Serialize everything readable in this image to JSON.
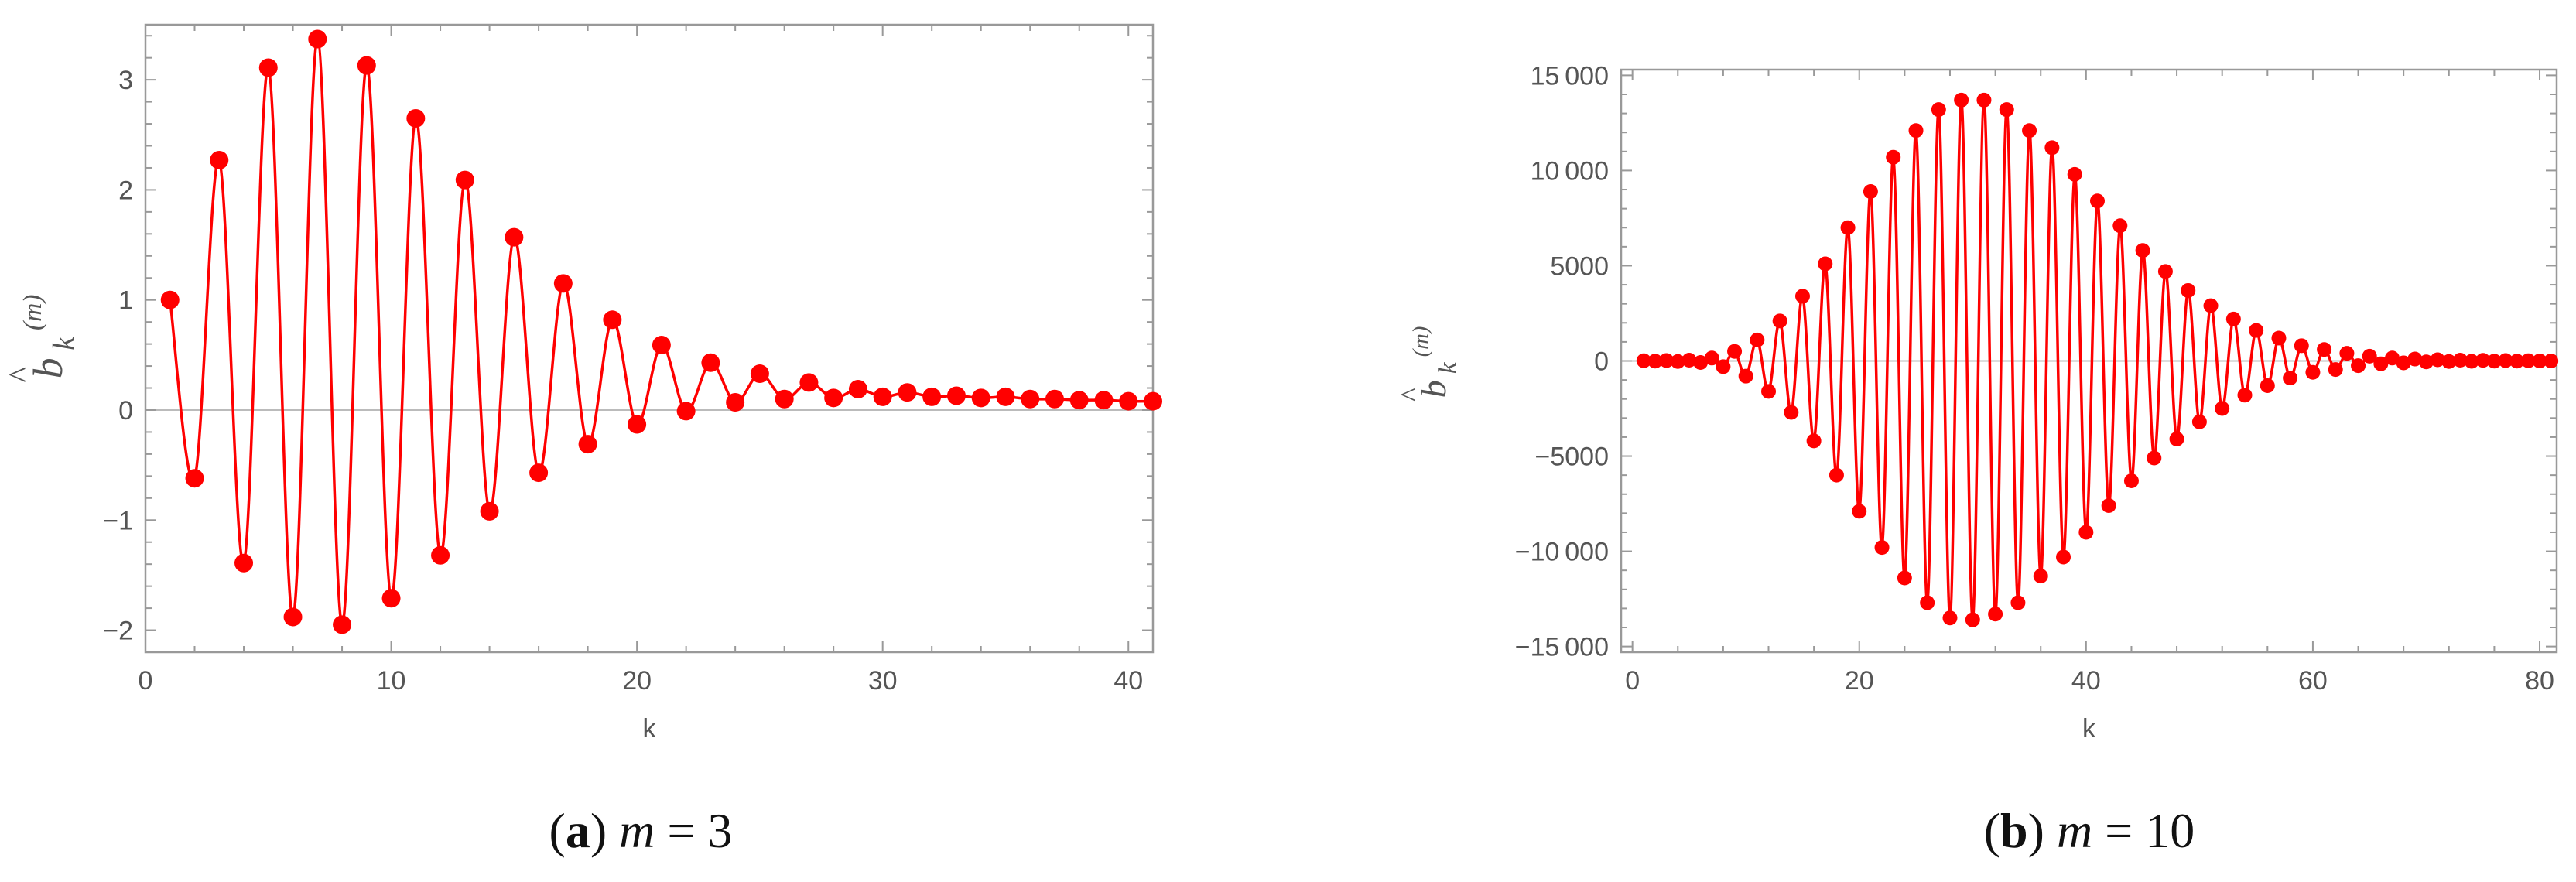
{
  "chart_data": [
    {
      "type": "line",
      "marker": "circle",
      "color": "#ff0000",
      "series_name": "",
      "xlabel": "k",
      "ylabel": {
        "symbol": "b",
        "accent": "^",
        "subscript": "k",
        "superscript": "(m)"
      },
      "xlim": [
        0,
        41
      ],
      "ylim": [
        -2.2,
        3.5
      ],
      "xticks": [
        0,
        10,
        20,
        30,
        40
      ],
      "yticks": [
        -2,
        -1,
        0,
        1,
        2,
        3
      ],
      "ytick_labels": [
        "−2",
        "−1",
        "0",
        "1",
        "2",
        "3"
      ],
      "grid": false,
      "x": [
        1,
        2,
        3,
        4,
        5,
        6,
        7,
        8,
        9,
        10,
        11,
        12,
        13,
        14,
        15,
        16,
        17,
        18,
        19,
        20,
        21,
        22,
        23,
        24,
        25,
        26,
        27,
        28,
        29,
        30,
        31,
        32,
        33,
        34,
        35,
        36,
        37,
        38,
        39,
        40,
        41
      ],
      "y": [
        1.0,
        -0.62,
        2.27,
        -1.39,
        3.11,
        -1.88,
        3.37,
        -1.95,
        3.13,
        -1.71,
        2.65,
        -1.32,
        2.09,
        -0.92,
        1.57,
        -0.57,
        1.15,
        -0.31,
        0.82,
        -0.13,
        0.59,
        -0.01,
        0.43,
        0.07,
        0.33,
        0.1,
        0.25,
        0.11,
        0.19,
        0.12,
        0.16,
        0.12,
        0.13,
        0.11,
        0.12,
        0.1,
        0.1,
        0.09,
        0.09,
        0.08,
        0.08
      ],
      "caption": {
        "letter": "a",
        "variable": "m",
        "equals": "=",
        "value": "3"
      }
    },
    {
      "type": "line",
      "marker": "circle",
      "color": "#ff0000",
      "series_name": "",
      "xlabel": "k",
      "ylabel": {
        "symbol": "b",
        "accent": "^",
        "subscript": "k",
        "superscript": "(m)"
      },
      "xlim": [
        -1,
        81.5
      ],
      "ylim": [
        -15300,
        15300
      ],
      "xticks": [
        0,
        20,
        40,
        60,
        80
      ],
      "yticks": [
        -15000,
        -10000,
        -5000,
        0,
        5000,
        10000,
        15000
      ],
      "ytick_labels": [
        "−15 000",
        "−10 000",
        "−5000",
        "0",
        "5000",
        "10 000",
        "15 000"
      ],
      "grid": false,
      "x": [
        1,
        2,
        3,
        4,
        5,
        6,
        7,
        8,
        9,
        10,
        11,
        12,
        13,
        14,
        15,
        16,
        17,
        18,
        19,
        20,
        21,
        22,
        23,
        24,
        25,
        26,
        27,
        28,
        29,
        30,
        31,
        32,
        33,
        34,
        35,
        36,
        37,
        38,
        39,
        40,
        41,
        42,
        43,
        44,
        45,
        46,
        47,
        48,
        49,
        50,
        51,
        52,
        53,
        54,
        55,
        56,
        57,
        58,
        59,
        60,
        61,
        62,
        63,
        64,
        65,
        66,
        67,
        68,
        69,
        70,
        71,
        72,
        73,
        74,
        75,
        76,
        77,
        78,
        79,
        80,
        81
      ],
      "y": [
        10,
        -10,
        20,
        -30,
        40,
        -80,
        150,
        -300,
        500,
        -800,
        1100,
        -1600,
        2100,
        -2700,
        3400,
        -4200,
        5100,
        -6000,
        7000,
        -7900,
        8900,
        -9800,
        10700,
        -11400,
        12100,
        -12700,
        13200,
        -13500,
        13700,
        -13600,
        13700,
        -13300,
        13200,
        -12700,
        12100,
        -11300,
        11200,
        -10300,
        9800,
        -9000,
        8400,
        -7600,
        7100,
        -6300,
        5800,
        -5100,
        4700,
        -4100,
        3700,
        -3200,
        2900,
        -2500,
        2200,
        -1800,
        1600,
        -1300,
        1200,
        -900,
        800,
        -600,
        600,
        -450,
        400,
        -250,
        250,
        -150,
        150,
        -100,
        100,
        -50,
        60,
        -30,
        40,
        -20,
        30,
        -10,
        20,
        -10,
        10,
        0,
        0
      ],
      "caption": {
        "letter": "b",
        "variable": "m",
        "equals": "=",
        "value": "10"
      }
    }
  ]
}
